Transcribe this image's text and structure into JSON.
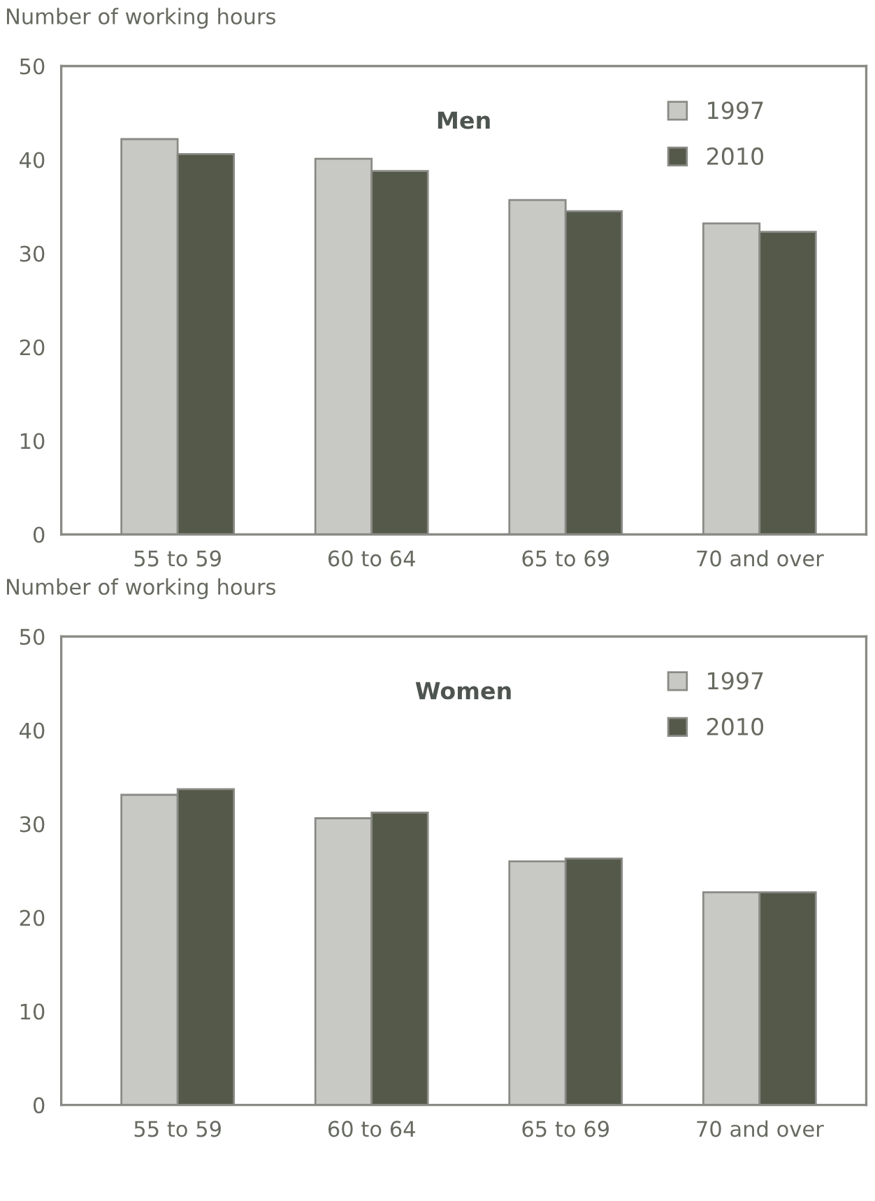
{
  "chart_data": [
    {
      "type": "bar",
      "title": "Men",
      "ylabel": "Number of working hours",
      "categories": [
        "55 to 59",
        "60 to 64",
        "65 to 69",
        "70 and over"
      ],
      "ylim": [
        0,
        50
      ],
      "yticks": [
        0,
        10,
        20,
        30,
        40,
        50
      ],
      "legend": "top right",
      "grid": false,
      "series": [
        {
          "name": "1997",
          "color": "#c8c8c5",
          "values": [
            42.2,
            40.1,
            35.7,
            33.2
          ]
        },
        {
          "name": "2010",
          "color": "#54594a",
          "values": [
            40.6,
            38.8,
            34.5,
            32.3
          ]
        }
      ]
    },
    {
      "type": "bar",
      "title": "Women",
      "ylabel": "Number of working hours",
      "categories": [
        "55 to 59",
        "60 to 64",
        "65 to 69",
        "70 and over"
      ],
      "ylim": [
        0,
        50
      ],
      "yticks": [
        0,
        10,
        20,
        30,
        40,
        50
      ],
      "legend": "top right",
      "grid": false,
      "series": [
        {
          "name": "1997",
          "color": "#c8c8c5",
          "values": [
            33.1,
            30.6,
            26.0,
            22.7
          ]
        },
        {
          "name": "2010",
          "color": "#54594a",
          "values": [
            33.7,
            31.2,
            26.3,
            22.7
          ]
        }
      ]
    }
  ]
}
